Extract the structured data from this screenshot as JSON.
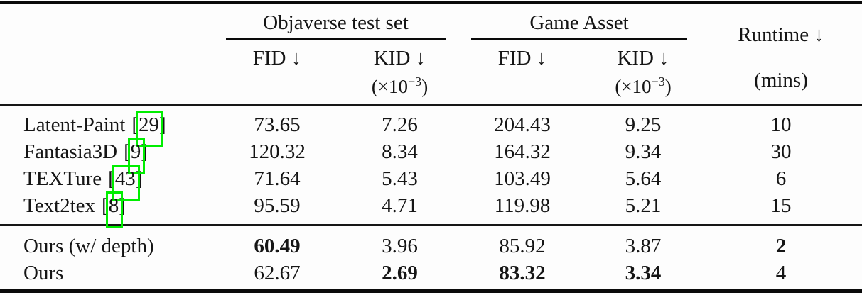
{
  "accent": {
    "citation_box_color": "#00ee00"
  },
  "punct": {
    "open": "[",
    "close": "]"
  },
  "header": {
    "groups": [
      {
        "label": "Objaverse test set"
      },
      {
        "label": "Game Asset"
      }
    ],
    "metrics": {
      "fid": "FID ↓",
      "kid": "KID ↓",
      "kid_scale": {
        "pre": "(×10",
        "sup": "−3",
        "post": ")"
      }
    },
    "runtime": {
      "label": "Runtime ↓",
      "unit": "(mins)"
    }
  },
  "rows": [
    {
      "method": "Latent-Paint",
      "cite": "29",
      "obj_fid": "73.65",
      "obj_kid": "7.26",
      "game_fid": "204.43",
      "game_kid": "9.25",
      "runtime": "10"
    },
    {
      "method": "Fantasia3D",
      "cite": "9",
      "obj_fid": "120.32",
      "obj_kid": "8.34",
      "game_fid": "164.32",
      "game_kid": "9.34",
      "runtime": "30"
    },
    {
      "method": "TEXTure",
      "cite": "43",
      "obj_fid": "71.64",
      "obj_kid": "5.43",
      "game_fid": "103.49",
      "game_kid": "5.64",
      "runtime": "6"
    },
    {
      "method": "Text2tex",
      "cite": "8",
      "obj_fid": "95.59",
      "obj_kid": "4.71",
      "game_fid": "119.98",
      "game_kid": "5.21",
      "runtime": "15"
    },
    {
      "method": "Ours (w/ depth)",
      "obj_fid": "60.49",
      "obj_kid": "3.96",
      "game_fid": "85.92",
      "game_kid": "3.87",
      "runtime": "2"
    },
    {
      "method": "Ours",
      "obj_fid": "62.67",
      "obj_kid": "2.69",
      "game_fid": "83.32",
      "game_kid": "3.34",
      "runtime": "4"
    }
  ]
}
